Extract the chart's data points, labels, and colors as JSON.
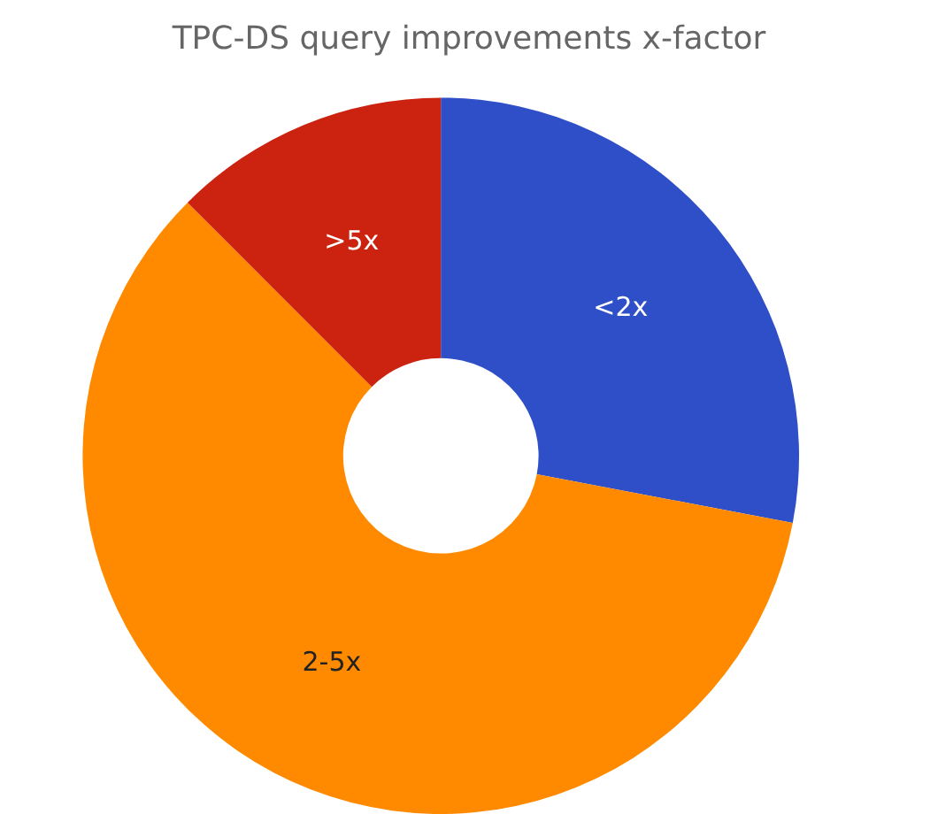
{
  "chart_data": {
    "type": "donut",
    "title": "TPC-DS query improvements x-factor",
    "categories": [
      "<2x",
      "2-5x",
      ">5x"
    ],
    "values": [
      28,
      59.5,
      12.5
    ],
    "colors": [
      "#2f4fc8",
      "#ff8a00",
      "#cc2210"
    ],
    "legend": false
  }
}
